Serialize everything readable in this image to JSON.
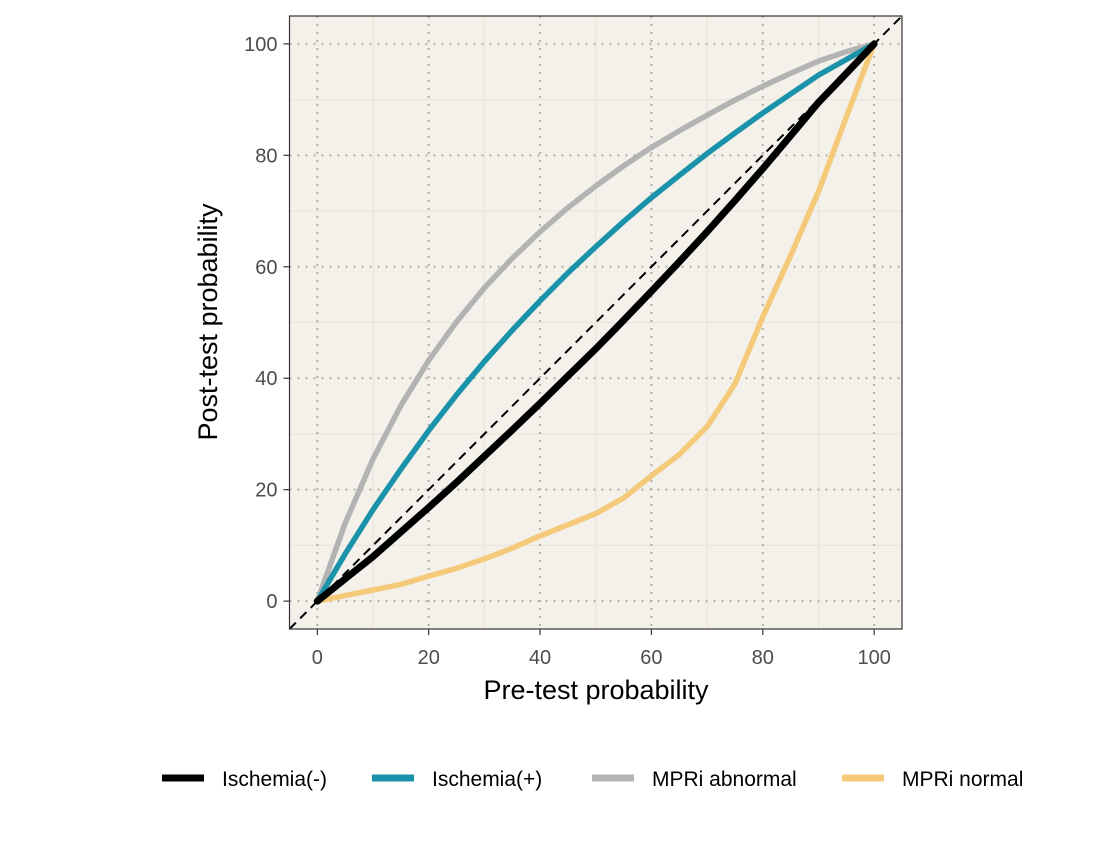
{
  "chart_data": {
    "type": "line",
    "title": "",
    "xlabel": "Pre-test probability",
    "ylabel": "Post-test probability",
    "xlim": [
      -5,
      105
    ],
    "ylim": [
      -5,
      105
    ],
    "x_ticks": [
      0,
      20,
      40,
      60,
      80,
      100
    ],
    "y_ticks": [
      0,
      20,
      40,
      60,
      80,
      100
    ],
    "x_tick_labels": [
      "0",
      "20",
      "40",
      "60",
      "80",
      "100"
    ],
    "y_tick_labels": [
      "0",
      "20",
      "40",
      "60",
      "80",
      "100"
    ],
    "grid": true,
    "legend_position": "bottom",
    "background_color": "#f4f0ea",
    "reference_line": {
      "type": "identity",
      "style": "dashed",
      "color": "#000000"
    },
    "x": [
      0,
      5,
      10,
      15,
      20,
      25,
      30,
      35,
      40,
      45,
      50,
      55,
      60,
      65,
      70,
      75,
      80,
      85,
      90,
      95,
      100
    ],
    "series": [
      {
        "name": "Ischemia(-)",
        "color": "#000000",
        "values": [
          0,
          4,
          8,
          12.4,
          16.8,
          21.3,
          26,
          30.7,
          35.5,
          40.4,
          45.3,
          50.4,
          55.6,
          60.9,
          66.3,
          71.9,
          77.6,
          83.5,
          89.5,
          94.7,
          100
        ]
      },
      {
        "name": "Ischemia(+)",
        "color": "#1a93aa",
        "values": [
          0,
          8.5,
          16.4,
          23.7,
          30.6,
          37,
          43,
          48.6,
          53.9,
          58.9,
          63.6,
          68.1,
          72.4,
          76.4,
          80.3,
          84,
          87.6,
          91,
          94.4,
          97.2,
          100
        ]
      },
      {
        "name": "MPRi abnormal",
        "color": "#b3b3b3",
        "values": [
          0,
          14,
          25.5,
          35.1,
          43.2,
          50.1,
          56.2,
          61.5,
          66.3,
          70.6,
          74.5,
          78.1,
          81.4,
          84.4,
          87.2,
          89.9,
          92.4,
          94.7,
          96.9,
          98.6,
          100
        ]
      },
      {
        "name": "MPRi normal",
        "color": "#f5c97a",
        "values": [
          0,
          1,
          2,
          3,
          4.5,
          5.9,
          7.6,
          9.5,
          11.7,
          13.7,
          15.7,
          18.5,
          22.5,
          26.3,
          31.3,
          39,
          51,
          62,
          73.5,
          86.9,
          100
        ]
      }
    ]
  }
}
